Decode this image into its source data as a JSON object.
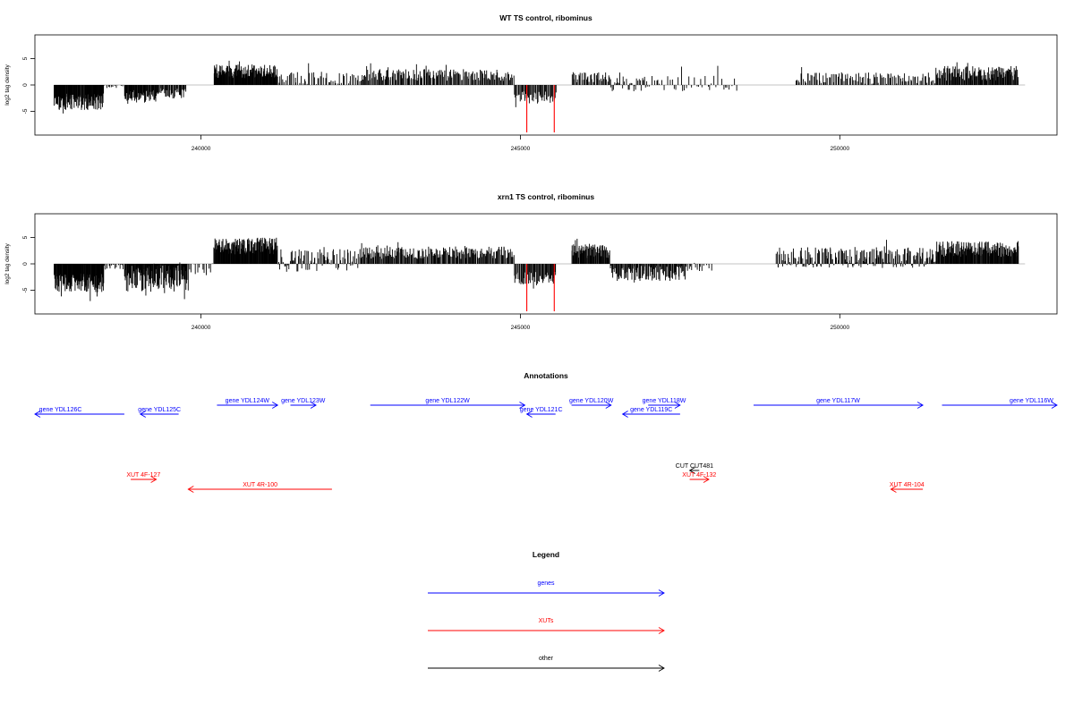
{
  "chart_data": [
    {
      "type": "bar",
      "title": "WT TS control, ribominus",
      "ylabel": "log2 tag density",
      "xlim": [
        237400,
        253400
      ],
      "ylim": [
        -9.5,
        9.5
      ],
      "x_ticks": [
        240000,
        245000,
        250000
      ],
      "y_ticks": [
        -5,
        0,
        5
      ],
      "x_tick_labels": [
        "240000",
        "245000",
        "250000"
      ],
      "y_tick_labels": [
        "-5",
        "0",
        "5"
      ],
      "highlight_color": "#ff0000",
      "bar_color": "#000000",
      "highlighted_bars": [
        {
          "x": 245100,
          "value": -9.0
        },
        {
          "x": 245530,
          "value": -9.0
        }
      ],
      "segments": [
        {
          "start": 237700,
          "end": 238480,
          "mean": -3.2,
          "amp": 1.6,
          "n": 110
        },
        {
          "start": 238480,
          "end": 238800,
          "mean": -0.3,
          "amp": 0.3,
          "n": 12
        },
        {
          "start": 238800,
          "end": 239300,
          "mean": -2.2,
          "amp": 1.2,
          "n": 60
        },
        {
          "start": 239300,
          "end": 239770,
          "mean": -1.6,
          "amp": 1.0,
          "n": 40
        },
        {
          "start": 239770,
          "end": 240200,
          "mean": 0,
          "amp": 0,
          "n": 0
        },
        {
          "start": 240200,
          "end": 241200,
          "mean": 2.6,
          "amp": 1.3,
          "n": 140
        },
        {
          "start": 241200,
          "end": 242500,
          "mean": 1.3,
          "amp": 1.2,
          "n": 55
        },
        {
          "start": 242500,
          "end": 244900,
          "mean": 1.9,
          "amp": 1.1,
          "n": 170
        },
        {
          "start": 244900,
          "end": 245560,
          "mean": -2.4,
          "amp": 1.2,
          "n": 50
        },
        {
          "start": 245560,
          "end": 245800,
          "mean": 0,
          "amp": 0,
          "n": 0
        },
        {
          "start": 245800,
          "end": 246400,
          "mean": 1.5,
          "amp": 1.0,
          "n": 40
        },
        {
          "start": 246400,
          "end": 247000,
          "mean": 0.2,
          "amp": 1.4,
          "n": 35
        },
        {
          "start": 247000,
          "end": 248400,
          "mean": 0.2,
          "amp": 1.5,
          "n": 40
        },
        {
          "start": 248400,
          "end": 249300,
          "mean": 0,
          "amp": 0,
          "n": 0
        },
        {
          "start": 249300,
          "end": 251500,
          "mean": 1.3,
          "amp": 1.1,
          "n": 110
        },
        {
          "start": 251500,
          "end": 252800,
          "mean": 2.2,
          "amp": 1.4,
          "n": 130
        }
      ]
    },
    {
      "type": "bar",
      "title": "xrn1 TS control, ribominus",
      "ylabel": "log2 tag density",
      "xlim": [
        237400,
        253400
      ],
      "ylim": [
        -9.5,
        9.5
      ],
      "x_ticks": [
        240000,
        245000,
        250000
      ],
      "y_ticks": [
        -5,
        0,
        5
      ],
      "x_tick_labels": [
        "240000",
        "245000",
        "250000"
      ],
      "y_tick_labels": [
        "-5",
        "0",
        "5"
      ],
      "highlight_color": "#ff0000",
      "bar_color": "#000000",
      "highlighted_bars": [
        {
          "x": 245100,
          "value": -9.0
        },
        {
          "x": 245530,
          "value": -9.0
        }
      ],
      "segments": [
        {
          "start": 237700,
          "end": 238480,
          "mean": -3.6,
          "amp": 1.8,
          "n": 120
        },
        {
          "start": 238480,
          "end": 238800,
          "mean": -0.6,
          "amp": 0.5,
          "n": 15
        },
        {
          "start": 238800,
          "end": 239800,
          "mean": -2.5,
          "amp": 2.8,
          "n": 150
        },
        {
          "start": 239800,
          "end": 240200,
          "mean": -0.8,
          "amp": 1.2,
          "n": 12
        },
        {
          "start": 240200,
          "end": 241200,
          "mean": 3.4,
          "amp": 1.6,
          "n": 150
        },
        {
          "start": 241200,
          "end": 242500,
          "mean": 0.6,
          "amp": 2.2,
          "n": 90
        },
        {
          "start": 242500,
          "end": 244900,
          "mean": 2.1,
          "amp": 1.2,
          "n": 200
        },
        {
          "start": 244900,
          "end": 245560,
          "mean": -2.8,
          "amp": 1.3,
          "n": 55
        },
        {
          "start": 245560,
          "end": 245800,
          "mean": 0,
          "amp": 0,
          "n": 0
        },
        {
          "start": 245800,
          "end": 246400,
          "mean": 2.4,
          "amp": 1.3,
          "n": 70
        },
        {
          "start": 246400,
          "end": 247600,
          "mean": -1.8,
          "amp": 1.5,
          "n": 110
        },
        {
          "start": 247600,
          "end": 248000,
          "mean": -0.6,
          "amp": 0.8,
          "n": 15
        },
        {
          "start": 248000,
          "end": 249000,
          "mean": 0,
          "amp": 0,
          "n": 0
        },
        {
          "start": 249000,
          "end": 251500,
          "mean": 1.2,
          "amp": 2.0,
          "n": 220
        },
        {
          "start": 251500,
          "end": 252800,
          "mean": 2.8,
          "amp": 1.5,
          "n": 160
        }
      ]
    },
    {
      "type": "table",
      "title": "Annotations",
      "xlim": [
        237400,
        253400
      ],
      "features": [
        {
          "label": "gene YDL126C",
          "start": 236800,
          "end": 238800,
          "strand": "-",
          "row": 1,
          "color": "#0000ff"
        },
        {
          "label": "gene YDL125C",
          "start": 239050,
          "end": 239650,
          "strand": "-",
          "row": 1,
          "color": "#0000ff"
        },
        {
          "label": "gene YDL124W",
          "start": 240250,
          "end": 241200,
          "strand": "+",
          "row": 0,
          "color": "#0000ff"
        },
        {
          "label": "gene YDL123W",
          "start": 241400,
          "end": 241800,
          "strand": "+",
          "row": 0,
          "color": "#0000ff"
        },
        {
          "label": "gene YDL122W",
          "start": 242650,
          "end": 245070,
          "strand": "+",
          "row": 0,
          "color": "#0000ff"
        },
        {
          "label": "gene YDL121C",
          "start": 245100,
          "end": 245550,
          "strand": "-",
          "row": 1,
          "color": "#0000ff"
        },
        {
          "label": "gene YDL120W",
          "start": 245800,
          "end": 246420,
          "strand": "+",
          "row": 0,
          "color": "#0000ff"
        },
        {
          "label": "gene YDL118W",
          "start": 247000,
          "end": 247500,
          "strand": "+",
          "row": 0,
          "color": "#0000ff"
        },
        {
          "label": "gene YDL119C",
          "start": 246600,
          "end": 247500,
          "strand": "-",
          "row": 1,
          "color": "#0000ff"
        },
        {
          "label": "gene YDL117W",
          "start": 248650,
          "end": 251300,
          "strand": "+",
          "row": 0,
          "color": "#0000ff"
        },
        {
          "label": "gene YDL116W",
          "start": 251600,
          "end": 254400,
          "strand": "+",
          "row": 0,
          "color": "#0000ff"
        },
        {
          "label": "XUT 4F-127",
          "start": 238900,
          "end": 239300,
          "strand": "+",
          "row": 3,
          "color": "#ff0000"
        },
        {
          "label": "XUT 4R-100",
          "start": 239800,
          "end": 242050,
          "strand": "-",
          "row": 4,
          "color": "#ff0000"
        },
        {
          "label": "CUT CUT481",
          "start": 247650,
          "end": 247800,
          "strand": "-",
          "row": 2,
          "color": "#000000"
        },
        {
          "label": "XUT 4F-132",
          "start": 247650,
          "end": 247950,
          "strand": "+",
          "row": 3,
          "color": "#ff0000"
        },
        {
          "label": "XUT 4R-104",
          "start": 250800,
          "end": 251300,
          "strand": "-",
          "row": 4,
          "color": "#ff0000"
        }
      ]
    }
  ],
  "legend": {
    "title": "Legend",
    "items": [
      {
        "label": "genes",
        "color": "#0000ff"
      },
      {
        "label": "XUTs",
        "color": "#ff0000"
      },
      {
        "label": "other",
        "color": "#000000"
      }
    ]
  }
}
